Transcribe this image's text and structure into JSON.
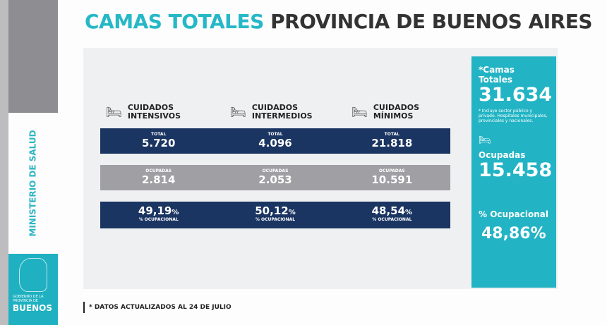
{
  "title": {
    "part1": "CAMAS TOTALES",
    "part2": "PROVINCIA DE BUENOS AIRES"
  },
  "sidebar": {
    "ministry": "MINISTERIO DE SALUD",
    "logo_small": "GOBIERNO DE LA PROVINCIA DE",
    "logo_big": "BUENOS"
  },
  "categories": [
    {
      "name1": "CUIDADOS",
      "name2": "INTENSIVOS",
      "total": "5.720",
      "ocupadas": "2.814",
      "pct": "49,19",
      "pct_suffix": "%"
    },
    {
      "name1": "CUIDADOS",
      "name2": "INTERMEDIOS",
      "total": "4.096",
      "ocupadas": "2.053",
      "pct": "50,12",
      "pct_suffix": "%"
    },
    {
      "name1": "CUIDADOS",
      "name2": "MÍNIMOS",
      "total": "21.818",
      "ocupadas": "10.591",
      "pct": "48,54",
      "pct_suffix": "%"
    }
  ],
  "labels": {
    "total": "TOTAL",
    "ocupadas": "OCUPADAS",
    "ocupacional": "% OCUPACIONAL"
  },
  "summary": {
    "camas_label": "*Camas Totales",
    "camas_value": "31.634",
    "note": "* Incluye sector público y privado. Hospitales municipales, provinciales y nacionales.",
    "ocupadas_label": "Ocupadas",
    "ocupadas_value": "15.458",
    "pct_label": "% Ocupacional",
    "pct_value": "48,86%"
  },
  "footer": "* DATOS ACTUALIZADOS AL 24 DE JULIO",
  "colors": {
    "teal": "#22b4c4",
    "navy": "#1b3562",
    "grey": "#a0a0a4"
  }
}
